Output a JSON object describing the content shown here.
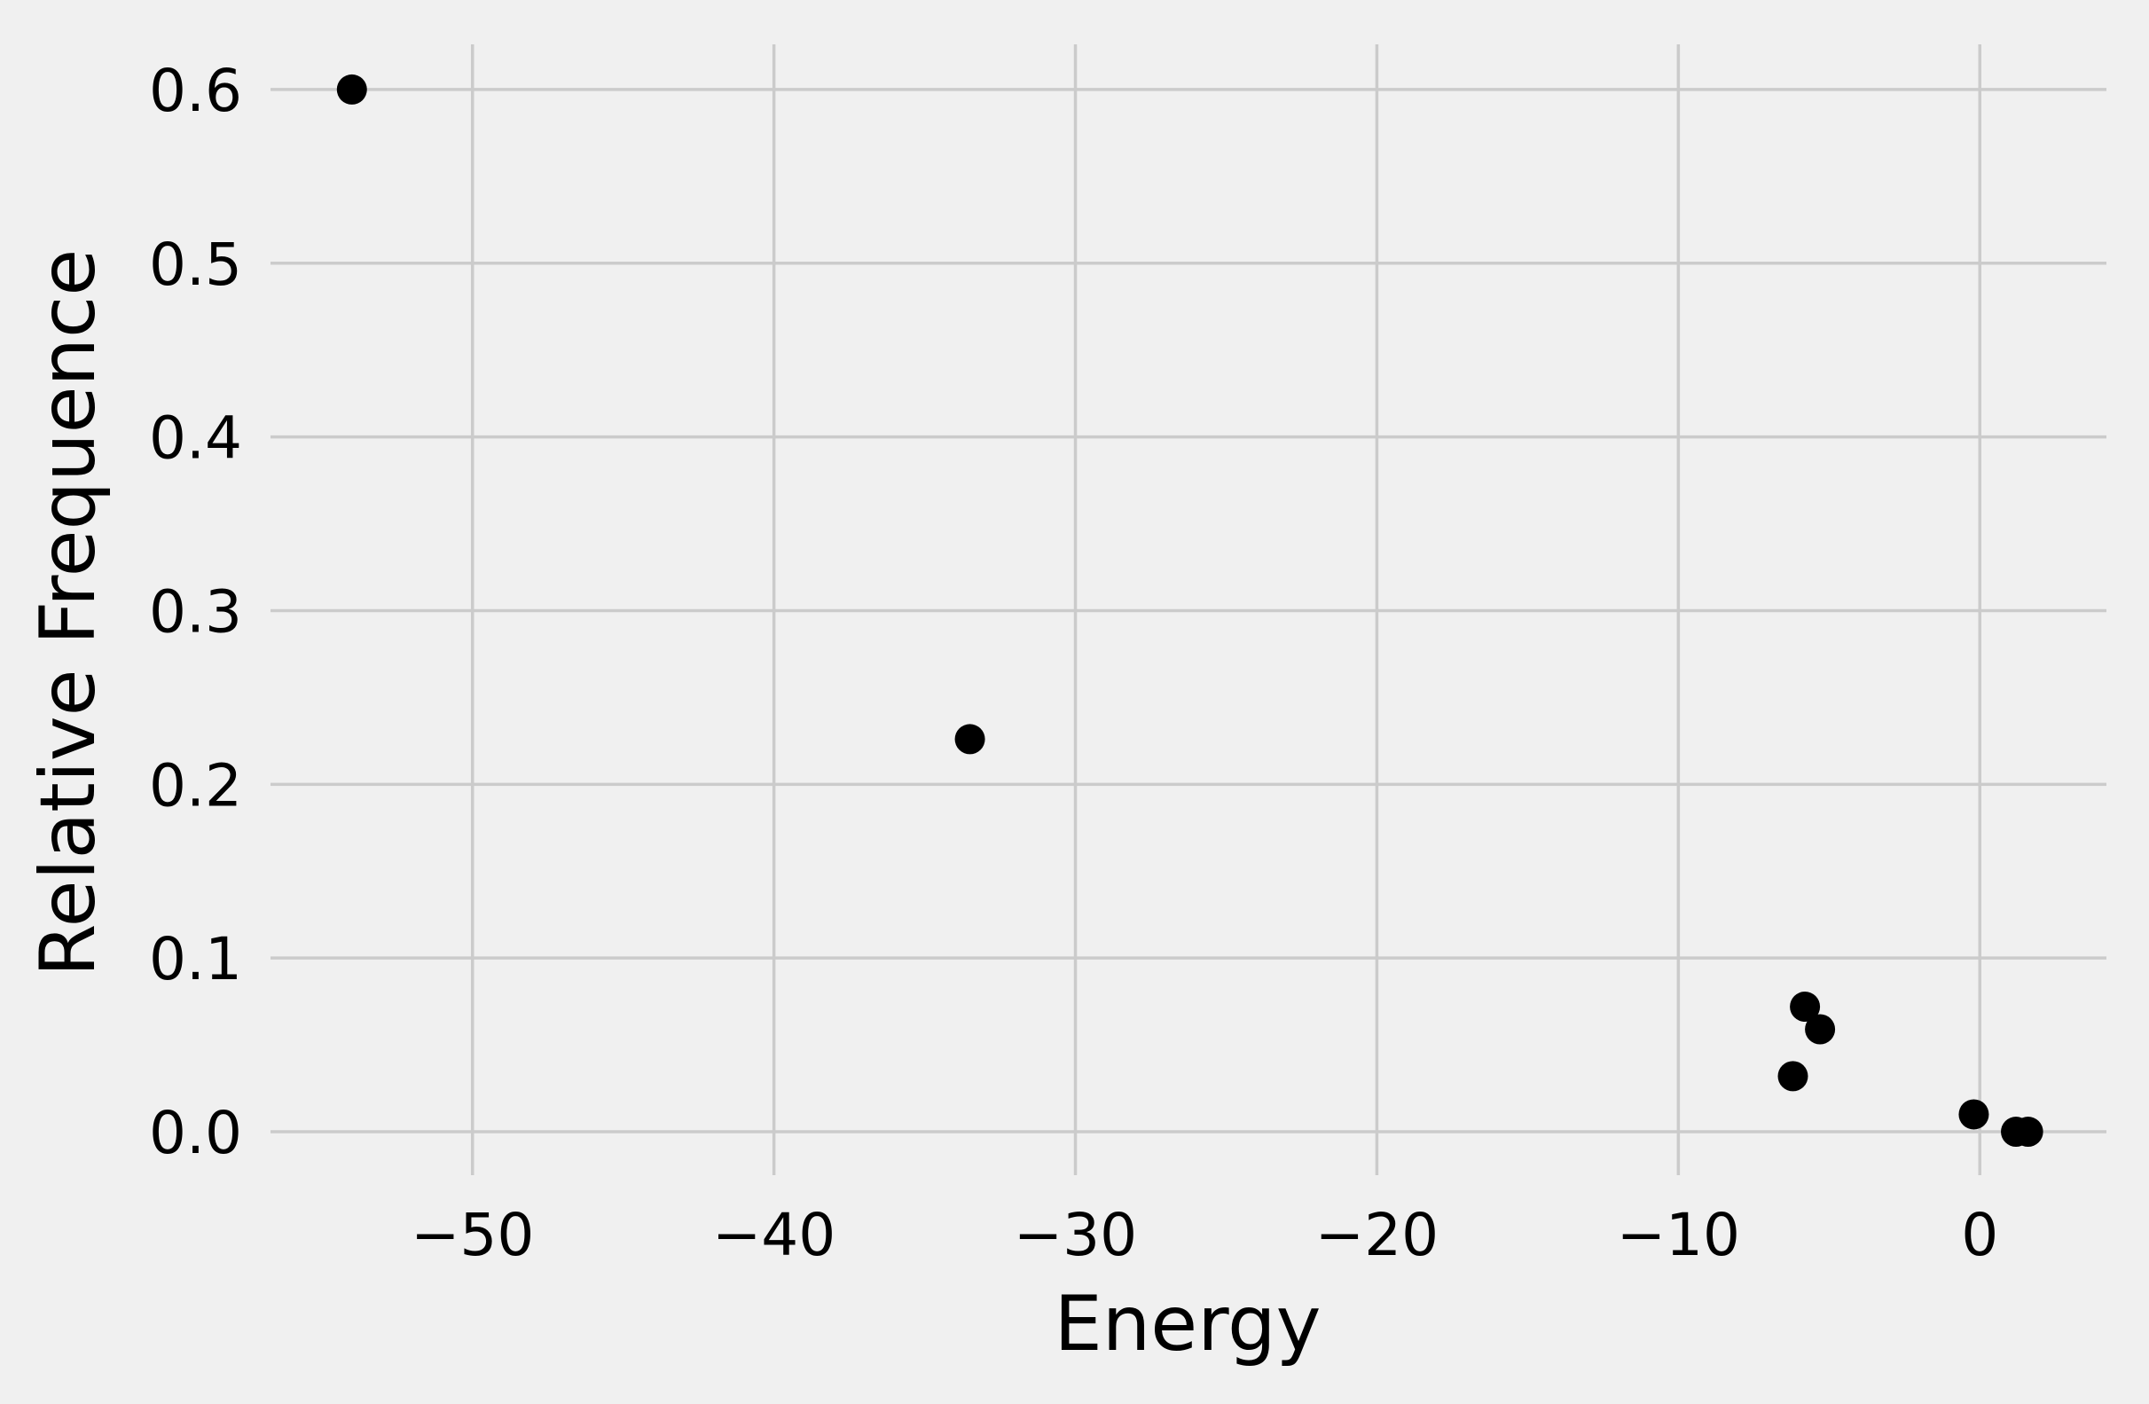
{
  "chart_data": {
    "type": "scatter",
    "title": "",
    "xlabel": "Energy",
    "ylabel": "Relative Frequence",
    "xlim": [
      -56.7,
      4.2
    ],
    "ylim": [
      -0.025,
      0.626
    ],
    "xticks": [
      -50,
      -40,
      -30,
      -20,
      -10,
      0
    ],
    "yticks": [
      0.0,
      0.1,
      0.2,
      0.3,
      0.4,
      0.5,
      0.6
    ],
    "xtick_labels": [
      "−50",
      "−40",
      "−30",
      "−20",
      "−10",
      "0"
    ],
    "ytick_labels": [
      "0.0",
      "0.1",
      "0.2",
      "0.3",
      "0.4",
      "0.5",
      "0.6"
    ],
    "grid": true,
    "marker_color": "#000000",
    "background_color": "#f0f0f0",
    "grid_color": "#cbcbcb",
    "points": [
      {
        "x": -54.0,
        "y": 0.6
      },
      {
        "x": -33.5,
        "y": 0.226
      },
      {
        "x": -5.8,
        "y": 0.072
      },
      {
        "x": -5.3,
        "y": 0.059
      },
      {
        "x": -6.2,
        "y": 0.032
      },
      {
        "x": -0.2,
        "y": 0.01
      },
      {
        "x": 1.2,
        "y": 0.0
      },
      {
        "x": 1.6,
        "y": 0.0
      }
    ]
  }
}
